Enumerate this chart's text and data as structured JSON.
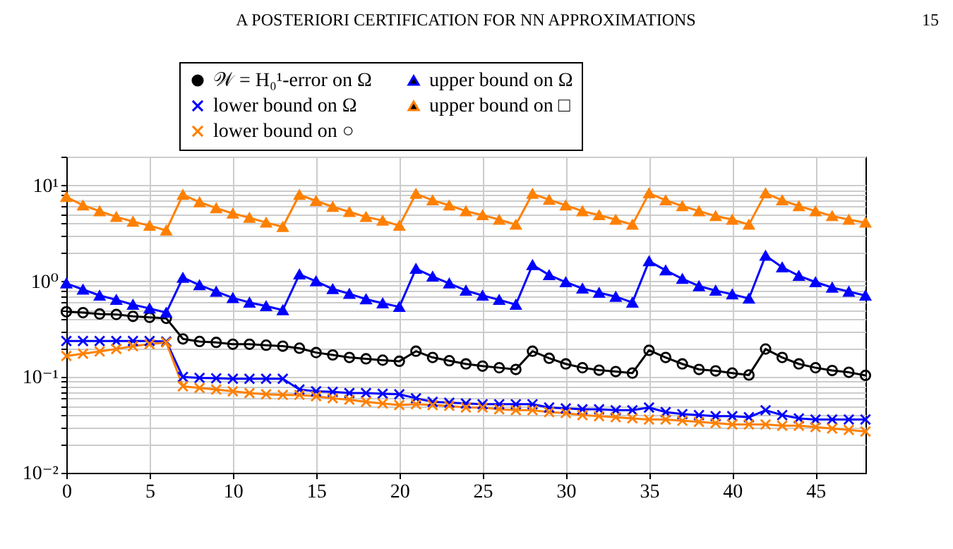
{
  "chart_data": {
    "type": "line",
    "title": "A POSTERIORI CERTIFICATION FOR NN APPROXIMATIONS",
    "annotations": [
      "15"
    ],
    "x": [
      0,
      1,
      2,
      3,
      4,
      5,
      6,
      7,
      8,
      9,
      10,
      11,
      12,
      13,
      14,
      15,
      16,
      17,
      18,
      19,
      20,
      21,
      22,
      23,
      24,
      25,
      26,
      27,
      28,
      29,
      30,
      31,
      32,
      33,
      34,
      35,
      36,
      37,
      38,
      39,
      40,
      41,
      42,
      43,
      44,
      45,
      46,
      47,
      48
    ],
    "xlim": [
      0,
      48
    ],
    "xticks": [
      0,
      5,
      10,
      15,
      20,
      25,
      30,
      35,
      40,
      45
    ],
    "ylim": [
      0.01,
      20
    ],
    "yticks": [
      {
        "value": 0.01,
        "label": "10⁻²"
      },
      {
        "value": 0.02,
        "label": null
      },
      {
        "value": 0.03,
        "label": null
      },
      {
        "value": 0.04,
        "label": null
      },
      {
        "value": 0.05,
        "label": null
      },
      {
        "value": 0.06,
        "label": null
      },
      {
        "value": 0.07,
        "label": null
      },
      {
        "value": 0.08,
        "label": null
      },
      {
        "value": 0.09,
        "label": null
      },
      {
        "value": 0.1,
        "label": "10⁻¹"
      },
      {
        "value": 0.2,
        "label": null
      },
      {
        "value": 0.3,
        "label": null
      },
      {
        "value": 0.4,
        "label": null
      },
      {
        "value": 0.5,
        "label": null
      },
      {
        "value": 0.6,
        "label": null
      },
      {
        "value": 0.7,
        "label": null
      },
      {
        "value": 0.8,
        "label": null
      },
      {
        "value": 0.9,
        "label": null
      },
      {
        "value": 1,
        "label": "10⁰"
      },
      {
        "value": 2,
        "label": null
      },
      {
        "value": 3,
        "label": null
      },
      {
        "value": 4,
        "label": null
      },
      {
        "value": 5,
        "label": null
      },
      {
        "value": 6,
        "label": null
      },
      {
        "value": 7,
        "label": null
      },
      {
        "value": 8,
        "label": null
      },
      {
        "value": 9,
        "label": null
      },
      {
        "value": 10,
        "label": "10¹"
      },
      {
        "value": 20,
        "label": null
      }
    ],
    "log": true,
    "grid": true,
    "legend": "top",
    "series": [
      {
        "name": "𝒲 = H₀¹-error on Ω",
        "color": "#000000",
        "marker": "circle",
        "values": [
          0.48,
          0.47,
          0.455,
          0.45,
          0.43,
          0.42,
          0.41,
          0.25,
          0.235,
          0.23,
          0.22,
          0.22,
          0.215,
          0.21,
          0.2,
          0.18,
          0.17,
          0.16,
          0.155,
          0.15,
          0.146,
          0.186,
          0.16,
          0.148,
          0.137,
          0.13,
          0.125,
          0.12,
          0.186,
          0.157,
          0.137,
          0.125,
          0.118,
          0.114,
          0.11,
          0.19,
          0.16,
          0.137,
          0.12,
          0.116,
          0.11,
          0.105,
          0.196,
          0.16,
          0.137,
          0.125,
          0.117,
          0.112,
          0.104
        ]
      },
      {
        "name": "upper bound on Ω",
        "color": "#0000ff",
        "marker": "triangle",
        "values": [
          0.95,
          0.82,
          0.71,
          0.64,
          0.57,
          0.52,
          0.47,
          1.09,
          0.91,
          0.78,
          0.67,
          0.6,
          0.55,
          0.5,
          1.18,
          1.0,
          0.83,
          0.74,
          0.65,
          0.59,
          0.54,
          1.35,
          1.12,
          0.95,
          0.8,
          0.71,
          0.64,
          0.57,
          1.48,
          1.16,
          0.98,
          0.84,
          0.76,
          0.69,
          0.6,
          1.62,
          1.3,
          1.06,
          0.89,
          0.8,
          0.73,
          0.66,
          1.85,
          1.4,
          1.14,
          0.98,
          0.86,
          0.78,
          0.71
        ]
      },
      {
        "name": "lower bound on Ω",
        "color": "#0000ff",
        "marker": "cross",
        "values": [
          0.238,
          0.238,
          0.238,
          0.238,
          0.238,
          0.238,
          0.235,
          0.1,
          0.098,
          0.097,
          0.096,
          0.096,
          0.096,
          0.096,
          0.074,
          0.071,
          0.07,
          0.068,
          0.068,
          0.067,
          0.066,
          0.06,
          0.055,
          0.054,
          0.053,
          0.052,
          0.052,
          0.052,
          0.052,
          0.048,
          0.047,
          0.046,
          0.046,
          0.045,
          0.045,
          0.048,
          0.043,
          0.041,
          0.04,
          0.039,
          0.039,
          0.038,
          0.045,
          0.04,
          0.037,
          0.036,
          0.036,
          0.036,
          0.036
        ]
      },
      {
        "name": "upper bound on □",
        "color": "#ff8000",
        "marker": "triangle",
        "values": [
          7.6,
          6.2,
          5.4,
          4.7,
          4.2,
          3.8,
          3.4,
          8.0,
          6.7,
          5.8,
          5.1,
          4.6,
          4.1,
          3.7,
          8.0,
          6.9,
          6.0,
          5.3,
          4.7,
          4.3,
          3.8,
          8.2,
          7.0,
          6.2,
          5.4,
          4.9,
          4.4,
          3.9,
          8.2,
          7.1,
          6.2,
          5.4,
          4.9,
          4.4,
          3.9,
          8.3,
          7.0,
          6.1,
          5.4,
          4.8,
          4.4,
          3.9,
          8.3,
          7.0,
          6.1,
          5.4,
          4.8,
          4.4,
          4.1
        ]
      },
      {
        "name": "lower bound on ○",
        "color": "#ff8000",
        "marker": "cross",
        "values": [
          0.166,
          0.175,
          0.185,
          0.196,
          0.21,
          0.22,
          0.23,
          0.08,
          0.077,
          0.074,
          0.071,
          0.068,
          0.066,
          0.065,
          0.065,
          0.063,
          0.06,
          0.058,
          0.055,
          0.053,
          0.051,
          0.052,
          0.051,
          0.05,
          0.048,
          0.048,
          0.046,
          0.045,
          0.045,
          0.043,
          0.042,
          0.04,
          0.039,
          0.038,
          0.037,
          0.036,
          0.036,
          0.035,
          0.034,
          0.033,
          0.032,
          0.032,
          0.032,
          0.031,
          0.031,
          0.03,
          0.029,
          0.028,
          0.027
        ]
      }
    ]
  }
}
